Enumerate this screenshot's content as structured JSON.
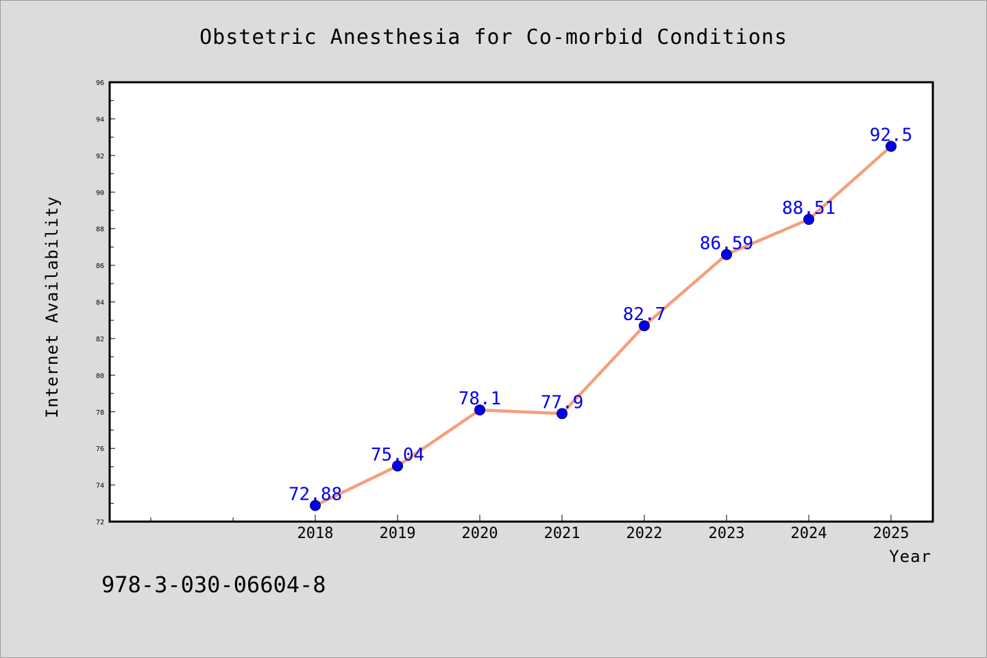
{
  "chart_data": {
    "type": "line",
    "title": "Obstetric Anesthesia for Co-morbid Conditions",
    "xlabel": "Year",
    "ylabel": "Internet Availability",
    "categories": [
      "2018",
      "2019",
      "2020",
      "2021",
      "2022",
      "2023",
      "2024",
      "2025"
    ],
    "series": [
      {
        "values": [
          72.88,
          75.04,
          78.1,
          77.9,
          82.7,
          86.59,
          88.51,
          92.5
        ],
        "labels": [
          "72.88",
          "75.04",
          "78.1",
          "77.9",
          "82.7",
          "86.59",
          "88.51",
          "92.5"
        ],
        "line_color": "#f4a07a",
        "marker_color": "#0000ee",
        "label_color": "#0000ee"
      }
    ],
    "ylim": [
      72,
      96
    ],
    "yticks": [
      "72",
      "74",
      "76",
      "78",
      "80",
      "82",
      "84",
      "86",
      "88",
      "90",
      "92",
      "94",
      "96"
    ],
    "x_leading_empty_slots": 2,
    "grid": false,
    "legend": "none"
  },
  "footer": {
    "code": "978-3-030-06604-8"
  },
  "colors": {
    "background": "#dcdcdc",
    "plot_background": "#ffffff",
    "axis": "#000000"
  }
}
